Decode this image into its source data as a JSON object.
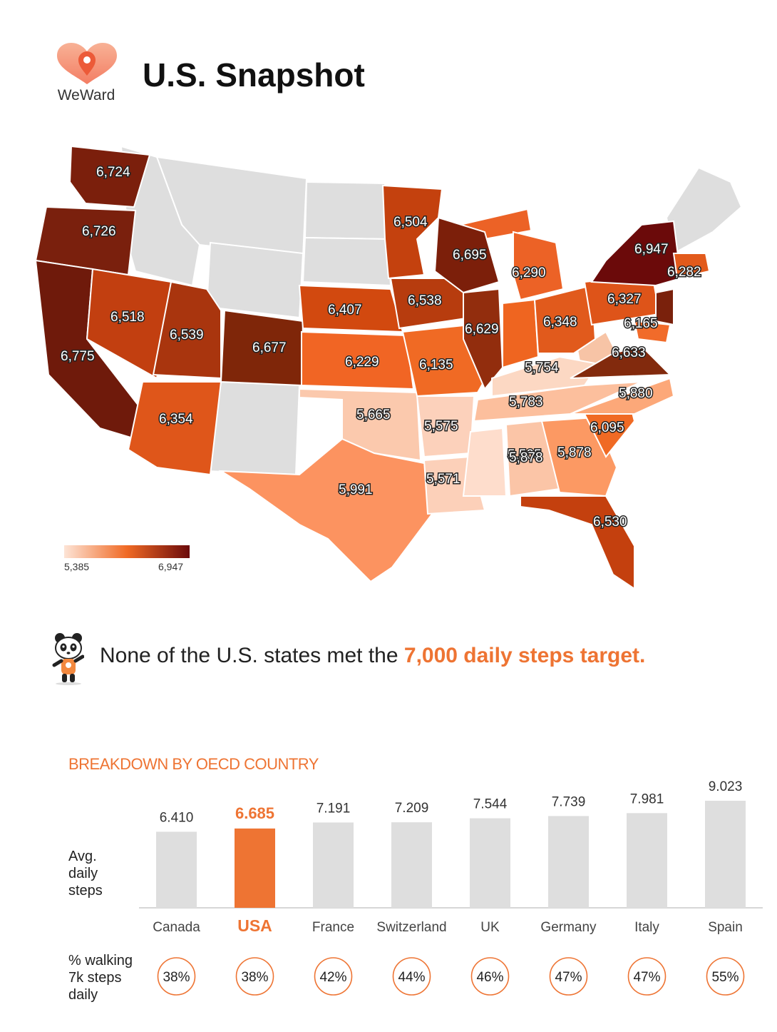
{
  "header": {
    "logo_text": "WeWard",
    "title": "U.S. Snapshot"
  },
  "colors": {
    "accent": "#ee7433",
    "bar_gray": "#dedede",
    "no_data": "#dedede",
    "scale_low": "#fde4d6",
    "scale_mid": "#f06a25",
    "scale_high": "#6b0a0a"
  },
  "map": {
    "legend": {
      "min_label": "5,385",
      "max_label": "6,947"
    },
    "state_values": [
      {
        "state": "WA",
        "value": "6,724"
      },
      {
        "state": "OR",
        "value": "6,726"
      },
      {
        "state": "CA",
        "value": "6,775"
      },
      {
        "state": "NV",
        "value": "6,518"
      },
      {
        "state": "UT",
        "value": "6,539"
      },
      {
        "state": "AZ",
        "value": "6,354"
      },
      {
        "state": "CO",
        "value": "6,677"
      },
      {
        "state": "NE",
        "value": "6,407"
      },
      {
        "state": "KS",
        "value": "6,229"
      },
      {
        "state": "OK",
        "value": "5,665"
      },
      {
        "state": "TX",
        "value": "5,991"
      },
      {
        "state": "MN",
        "value": "6,504"
      },
      {
        "state": "IA",
        "value": "6,538"
      },
      {
        "state": "MO",
        "value": "6,135"
      },
      {
        "state": "AR",
        "value": "5,575"
      },
      {
        "state": "LA",
        "value": "5,571"
      },
      {
        "state": "WI",
        "value": "6,695"
      },
      {
        "state": "IL",
        "value": "6,629"
      },
      {
        "state": "MI",
        "value": "6,290"
      },
      {
        "state": "OH",
        "value": "6,348"
      },
      {
        "state": "KY",
        "value": "5,754"
      },
      {
        "state": "TN",
        "value": "5,783"
      },
      {
        "state": "MS",
        "value": "5,505"
      },
      {
        "state": "AL",
        "value": "5,878"
      },
      {
        "state": "GA",
        "value": "5,878"
      },
      {
        "state": "FL",
        "value": "6,530"
      },
      {
        "state": "SC",
        "value": "6,095"
      },
      {
        "state": "NC",
        "value": "5,880"
      },
      {
        "state": "VA",
        "value": "6,633"
      },
      {
        "state": "PA",
        "value": "6,327"
      },
      {
        "state": "NY",
        "value": "6,947"
      },
      {
        "state": "NJ",
        "value": "6,165"
      },
      {
        "state": "MA",
        "value": "6,282"
      }
    ]
  },
  "callout": {
    "text": "None of the U.S. states met the ",
    "highlight": "7,000 daily steps target."
  },
  "breakdown": {
    "title": "BREAKDOWN BY OECD COUNTRY",
    "y_label": [
      "Avg.",
      "daily",
      "steps"
    ],
    "pct_label": [
      "% walking",
      "7k steps",
      "daily"
    ]
  },
  "chart_data": {
    "type": "bar",
    "title": "BREAKDOWN BY OECD COUNTRY",
    "ylabel": "Avg. daily steps",
    "categories": [
      "Canada",
      "USA",
      "France",
      "Switzerland",
      "UK",
      "Germany",
      "Italy",
      "Spain"
    ],
    "values": [
      6410,
      6685,
      7191,
      7209,
      7544,
      7739,
      7981,
      9023
    ],
    "value_labels": [
      "6.410",
      "6.685",
      "7.191",
      "7.209",
      "7.544",
      "7.739",
      "7.981",
      "9.023"
    ],
    "highlight": "USA",
    "pct_walking_7k": [
      "38%",
      "38%",
      "42%",
      "44%",
      "46%",
      "47%",
      "47%",
      "55%"
    ],
    "ylim": [
      0,
      9023
    ]
  }
}
